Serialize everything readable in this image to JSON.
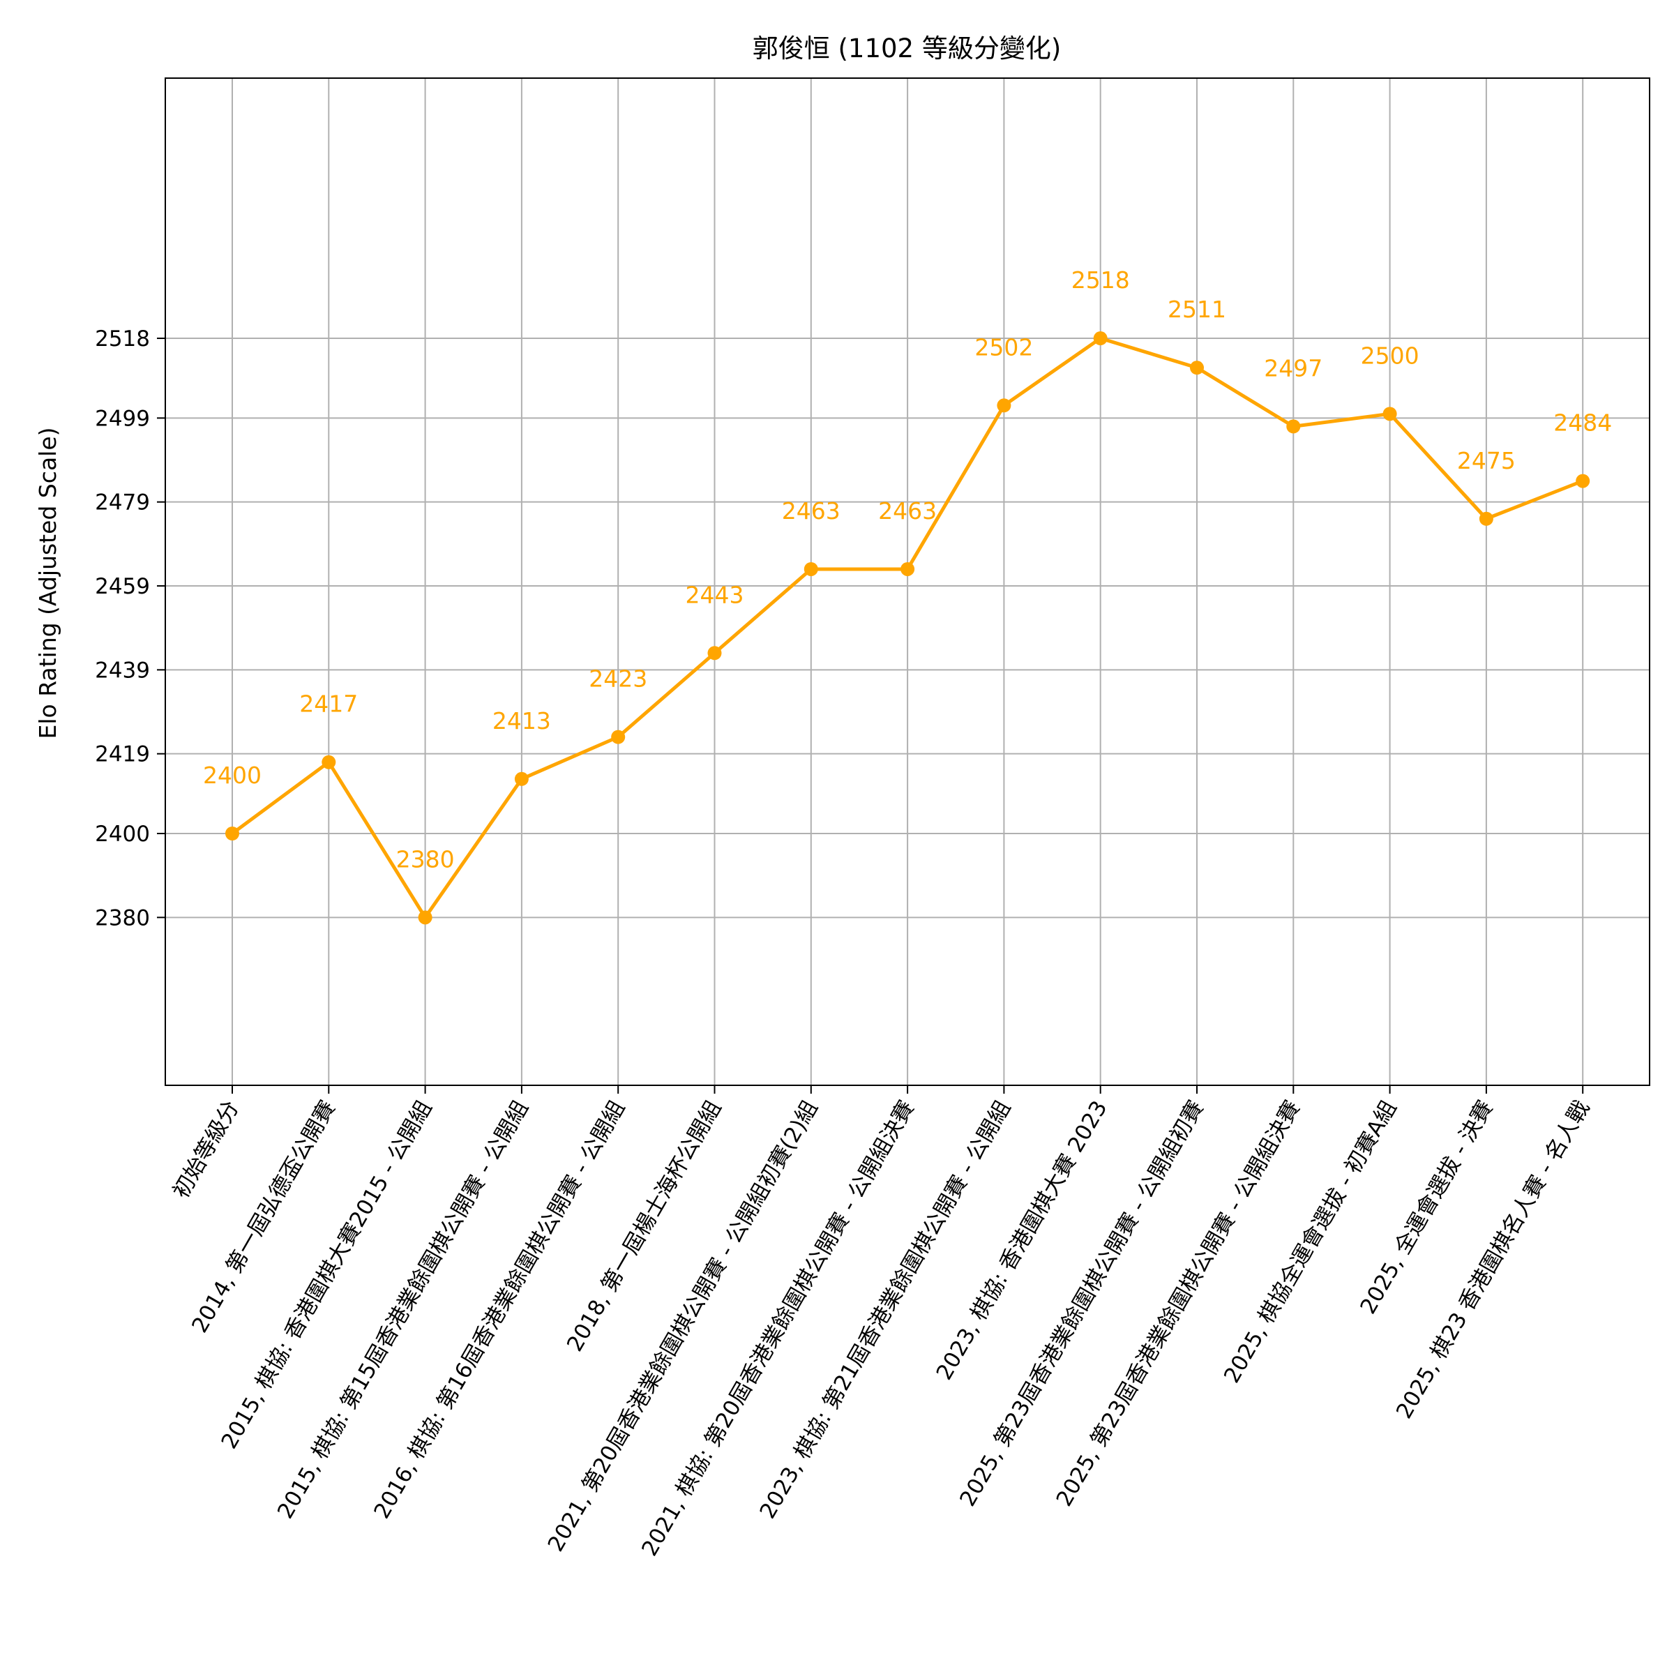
{
  "chart_data": {
    "type": "line",
    "title": "郭俊恒 (1102 等級分變化)",
    "xlabel": "",
    "ylabel": "Elo Rating (Adjusted Scale)",
    "ylim": [
      2340,
      2580
    ],
    "yticks": [
      2380,
      2400,
      2419,
      2439,
      2459,
      2479,
      2499,
      2518
    ],
    "grid": true,
    "line_color": "#FFA500",
    "label_color": "#FFA500",
    "categories": [
      "初始等級分",
      "2014, 第一屆弘德盃公開賽",
      "2015, 棋協: 香港圍棋大賽2015 - 公開組",
      "2015, 棋協: 第15屆香港業餘圍棋公開賽 - 公開組",
      "2016, 棋協: 第16屆香港業餘圍棋公開賽 - 公開組",
      "2018, 第一屆楊士海杯公開組",
      "2021, 第20屆香港業餘圍棋公開賽 - 公開組初賽(2)組",
      "2021, 棋協: 第20屆香港業餘圍棋公開賽 - 公開組決賽",
      "2023, 棋協: 第21屆香港業餘圍棋公開賽 - 公開組",
      "2023, 棋協: 香港圍棋大賽 2023",
      "2025, 第23屆香港業餘圍棋公開賽 - 公開組初賽",
      "2025, 第23屆香港業餘圍棋公開賽 - 公開組決賽",
      "2025, 棋協全運會選拔 - 初賽A組",
      "2025, 全運會選拔 - 決賽",
      "2025, 棋23  香港圍棋名人賽 - 名人戰"
    ],
    "series": [
      {
        "values": [
          2400,
          2417,
          2380,
          2413,
          2423,
          2443,
          2463,
          2463,
          2502,
          2518,
          2511,
          2497,
          2500,
          2475,
          2484
        ],
        "labels": [
          "2400",
          "2417",
          "2380",
          "2413",
          "2423",
          "2443",
          "2463",
          "2463",
          "2502",
          "2518",
          "2511",
          "2497",
          "2500",
          "2475",
          "2484"
        ]
      }
    ]
  }
}
